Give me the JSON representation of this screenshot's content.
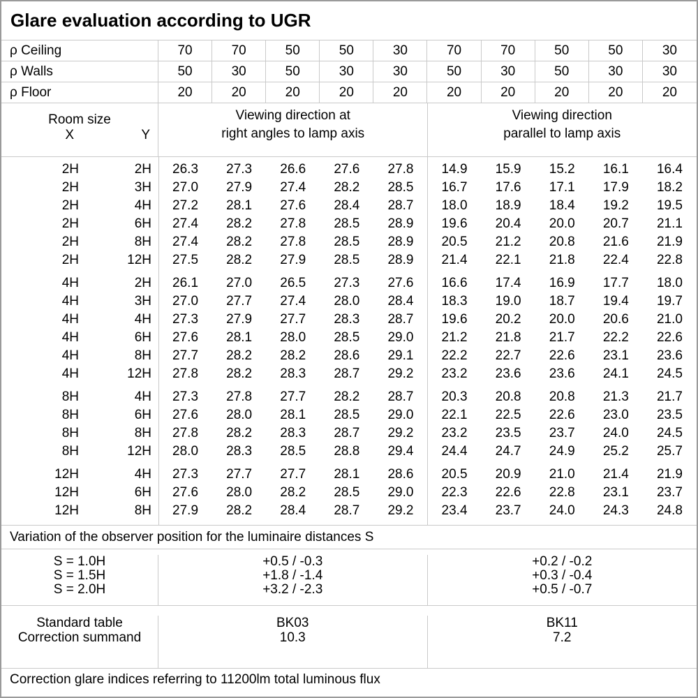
{
  "title": "Glare evaluation according to UGR",
  "reflectance_rows": [
    {
      "label": "ρ Ceiling",
      "values": [
        "70",
        "70",
        "50",
        "50",
        "30",
        "70",
        "70",
        "50",
        "50",
        "30"
      ]
    },
    {
      "label": "ρ Walls",
      "values": [
        "50",
        "30",
        "50",
        "30",
        "30",
        "50",
        "30",
        "50",
        "30",
        "30"
      ]
    },
    {
      "label": "ρ Floor",
      "values": [
        "20",
        "20",
        "20",
        "20",
        "20",
        "20",
        "20",
        "20",
        "20",
        "20"
      ]
    }
  ],
  "column_headers": {
    "room_size": "Room size",
    "x_label": "X",
    "y_label": "Y",
    "right_angles": {
      "line1": "Viewing direction at",
      "line2": "right angles to lamp axis"
    },
    "parallel": {
      "line1": "Viewing direction",
      "line2": "parallel to lamp axis"
    }
  },
  "groups": [
    {
      "rows": [
        {
          "x": "2H",
          "y": "2H",
          "values": [
            "26.3",
            "27.3",
            "26.6",
            "27.6",
            "27.8",
            "14.9",
            "15.9",
            "15.2",
            "16.1",
            "16.4"
          ]
        },
        {
          "x": "2H",
          "y": "3H",
          "values": [
            "27.0",
            "27.9",
            "27.4",
            "28.2",
            "28.5",
            "16.7",
            "17.6",
            "17.1",
            "17.9",
            "18.2"
          ]
        },
        {
          "x": "2H",
          "y": "4H",
          "values": [
            "27.2",
            "28.1",
            "27.6",
            "28.4",
            "28.7",
            "18.0",
            "18.9",
            "18.4",
            "19.2",
            "19.5"
          ]
        },
        {
          "x": "2H",
          "y": "6H",
          "values": [
            "27.4",
            "28.2",
            "27.8",
            "28.5",
            "28.9",
            "19.6",
            "20.4",
            "20.0",
            "20.7",
            "21.1"
          ]
        },
        {
          "x": "2H",
          "y": "8H",
          "values": [
            "27.4",
            "28.2",
            "27.8",
            "28.5",
            "28.9",
            "20.5",
            "21.2",
            "20.8",
            "21.6",
            "21.9"
          ]
        },
        {
          "x": "2H",
          "y": "12H",
          "values": [
            "27.5",
            "28.2",
            "27.9",
            "28.5",
            "28.9",
            "21.4",
            "22.1",
            "21.8",
            "22.4",
            "22.8"
          ]
        }
      ]
    },
    {
      "rows": [
        {
          "x": "4H",
          "y": "2H",
          "values": [
            "26.1",
            "27.0",
            "26.5",
            "27.3",
            "27.6",
            "16.6",
            "17.4",
            "16.9",
            "17.7",
            "18.0"
          ]
        },
        {
          "x": "4H",
          "y": "3H",
          "values": [
            "27.0",
            "27.7",
            "27.4",
            "28.0",
            "28.4",
            "18.3",
            "19.0",
            "18.7",
            "19.4",
            "19.7"
          ]
        },
        {
          "x": "4H",
          "y": "4H",
          "values": [
            "27.3",
            "27.9",
            "27.7",
            "28.3",
            "28.7",
            "19.6",
            "20.2",
            "20.0",
            "20.6",
            "21.0"
          ]
        },
        {
          "x": "4H",
          "y": "6H",
          "values": [
            "27.6",
            "28.1",
            "28.0",
            "28.5",
            "29.0",
            "21.2",
            "21.8",
            "21.7",
            "22.2",
            "22.6"
          ]
        },
        {
          "x": "4H",
          "y": "8H",
          "values": [
            "27.7",
            "28.2",
            "28.2",
            "28.6",
            "29.1",
            "22.2",
            "22.7",
            "22.6",
            "23.1",
            "23.6"
          ]
        },
        {
          "x": "4H",
          "y": "12H",
          "values": [
            "27.8",
            "28.2",
            "28.3",
            "28.7",
            "29.2",
            "23.2",
            "23.6",
            "23.6",
            "24.1",
            "24.5"
          ]
        }
      ]
    },
    {
      "rows": [
        {
          "x": "8H",
          "y": "4H",
          "values": [
            "27.3",
            "27.8",
            "27.7",
            "28.2",
            "28.7",
            "20.3",
            "20.8",
            "20.8",
            "21.3",
            "21.7"
          ]
        },
        {
          "x": "8H",
          "y": "6H",
          "values": [
            "27.6",
            "28.0",
            "28.1",
            "28.5",
            "29.0",
            "22.1",
            "22.5",
            "22.6",
            "23.0",
            "23.5"
          ]
        },
        {
          "x": "8H",
          "y": "8H",
          "values": [
            "27.8",
            "28.2",
            "28.3",
            "28.7",
            "29.2",
            "23.2",
            "23.5",
            "23.7",
            "24.0",
            "24.5"
          ]
        },
        {
          "x": "8H",
          "y": "12H",
          "values": [
            "28.0",
            "28.3",
            "28.5",
            "28.8",
            "29.4",
            "24.4",
            "24.7",
            "24.9",
            "25.2",
            "25.7"
          ]
        }
      ]
    },
    {
      "rows": [
        {
          "x": "12H",
          "y": "4H",
          "values": [
            "27.3",
            "27.7",
            "27.7",
            "28.1",
            "28.6",
            "20.5",
            "20.9",
            "21.0",
            "21.4",
            "21.9"
          ]
        },
        {
          "x": "12H",
          "y": "6H",
          "values": [
            "27.6",
            "28.0",
            "28.2",
            "28.5",
            "29.0",
            "22.3",
            "22.6",
            "22.8",
            "23.1",
            "23.7"
          ]
        },
        {
          "x": "12H",
          "y": "8H",
          "values": [
            "27.9",
            "28.2",
            "28.4",
            "28.7",
            "29.2",
            "23.4",
            "23.7",
            "24.0",
            "24.3",
            "24.8"
          ]
        }
      ]
    }
  ],
  "variation_note": "Variation of the observer position for the luminaire distances S",
  "s_section": {
    "labels": [
      "S = 1.0H",
      "S = 1.5H",
      "S = 2.0H"
    ],
    "right_angles": [
      "+0.5 / -0.3",
      "+1.8 / -1.4",
      "+3.2 / -2.3"
    ],
    "parallel": [
      "+0.2 / -0.2",
      "+0.3 / -0.4",
      "+0.5 / -0.7"
    ]
  },
  "standard_section": {
    "labels": [
      "Standard table",
      "Correction summand"
    ],
    "right_angles": [
      "BK03",
      "10.3"
    ],
    "parallel": [
      "BK11",
      "7.2"
    ]
  },
  "footer": "Correction glare indices referring to 11200lm total luminous flux",
  "colors": {
    "background": "#ffffff",
    "text": "#000000",
    "grid_line": "#c9c9c9",
    "outer_border": "#9a9a9a"
  }
}
